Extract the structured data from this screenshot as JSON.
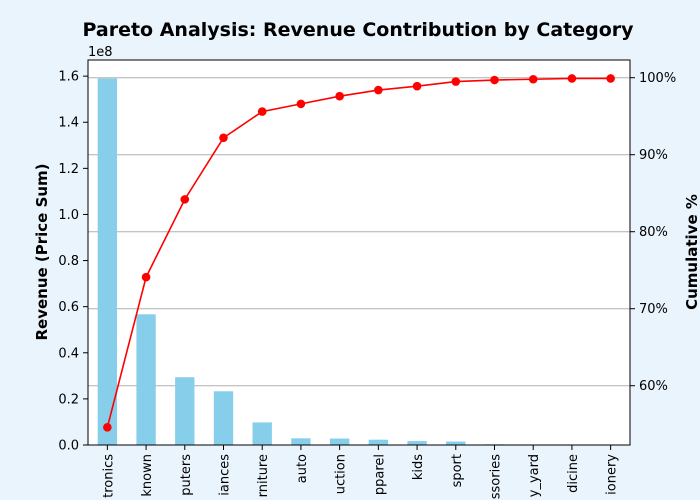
{
  "chart_data": {
    "type": "bar+line",
    "title": "Pareto Analysis: Revenue Contribution by Category",
    "ylabel": "Revenue (Price Sum)",
    "y2label": "Cumulative %",
    "y_offset_text": "1e8",
    "categories": [
      "electronics",
      "unknown",
      "computers",
      "appliances",
      "furniture",
      "auto",
      "construction",
      "apparel",
      "kids",
      "sport",
      "accessories",
      "country_yard",
      "medicine",
      "stationery"
    ],
    "tick_labels": [
      "tronics",
      "known",
      "puters",
      "iances",
      "rniture",
      "auto",
      "uction",
      "pparel",
      "kids",
      "sport",
      "ssories",
      "y_yard",
      "dicine",
      "ionery"
    ],
    "series": [
      {
        "type": "bar",
        "axis": "left",
        "color": "#87ceeb",
        "values": [
          159000000,
          56700000,
          29400000,
          23300000,
          9800000,
          2900000,
          2800000,
          2300000,
          1700000,
          1500000,
          300000,
          100000,
          50000,
          30000
        ]
      },
      {
        "type": "line",
        "axis": "right",
        "color": "#ff0000",
        "values": [
          54.6,
          74.1,
          84.2,
          92.2,
          95.6,
          96.6,
          97.6,
          98.4,
          98.9,
          99.5,
          99.7,
          99.8,
          99.9,
          99.9
        ]
      }
    ],
    "ylim": [
      0,
      167000000
    ],
    "y_ticks": [
      0,
      20000000,
      40000000,
      60000000,
      80000000,
      100000000,
      120000000,
      140000000,
      160000000
    ],
    "y_tick_labels": [
      "0.0",
      "0.2",
      "0.4",
      "0.6",
      "0.8",
      "1.0",
      "1.2",
      "1.4",
      "1.6"
    ],
    "y2lim": [
      52.3,
      102.3
    ],
    "y2_ticks": [
      60,
      70,
      80,
      90,
      100
    ],
    "y2_tick_labels": [
      "60%",
      "70%",
      "80%",
      "90%",
      "100%"
    ],
    "grid": "horizontal, right axis"
  }
}
